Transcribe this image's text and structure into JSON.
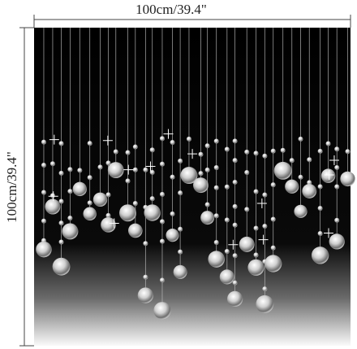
{
  "dimensions": {
    "width": "100cm/39.4\"",
    "height": "100cm/39.4\""
  }
}
